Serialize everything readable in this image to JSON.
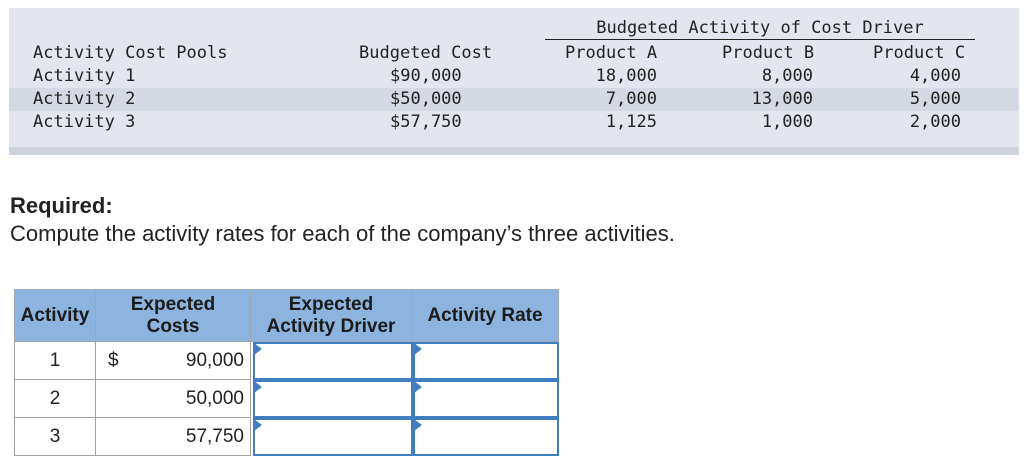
{
  "info_table": {
    "group_header": "Budgeted Activity of Cost Driver",
    "headers": {
      "pool": "Activity Cost Pools",
      "cost": "Budgeted Cost",
      "product_a": "Product A",
      "product_b": "Product B",
      "product_c": "Product C"
    },
    "rows": [
      {
        "pool": "Activity 1",
        "cost": "$90,000",
        "product_a": "18,000",
        "product_b": "8,000",
        "product_c": "4,000"
      },
      {
        "pool": "Activity 2",
        "cost": "$50,000",
        "product_a": "7,000",
        "product_b": "13,000",
        "product_c": "5,000"
      },
      {
        "pool": "Activity 3",
        "cost": "$57,750",
        "product_a": "1,125",
        "product_b": "1,000",
        "product_c": "2,000"
      }
    ]
  },
  "required": {
    "title": "Required:",
    "text": "Compute the activity rates for each of the company’s three activities."
  },
  "answer_table": {
    "headers": {
      "activity": "Activity",
      "expected_costs_line1": "Expected",
      "expected_costs_line2": "Costs",
      "expected_driver_line1": "Expected",
      "expected_driver_line2": "Activity Driver",
      "activity_rate": "Activity Rate"
    },
    "rows": [
      {
        "activity": "1",
        "currency": "$",
        "cost": "90,000",
        "driver": "",
        "rate": ""
      },
      {
        "activity": "2",
        "currency": "",
        "cost": "50,000",
        "driver": "",
        "rate": ""
      },
      {
        "activity": "3",
        "currency": "",
        "cost": "57,750",
        "driver": "",
        "rate": ""
      }
    ]
  }
}
